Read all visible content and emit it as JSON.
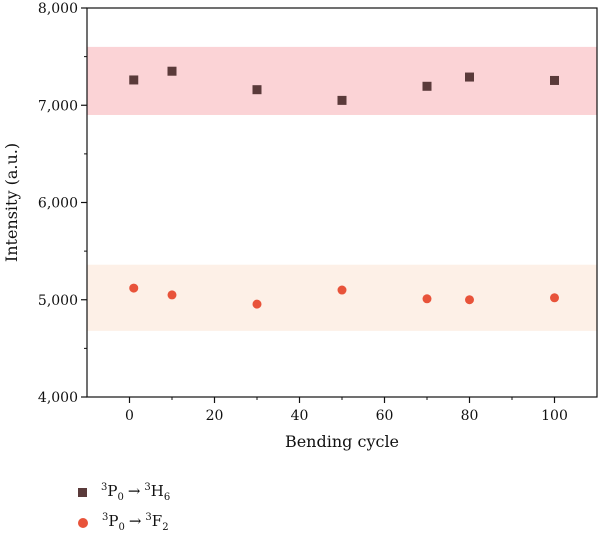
{
  "chart_data": {
    "type": "scatter",
    "xlabel": "Bending cycle",
    "ylabel": "Intensity (a.u.)",
    "xlim": [
      -10,
      110
    ],
    "ylim": [
      4000,
      8000
    ],
    "x_ticks": [
      0,
      20,
      40,
      60,
      80,
      100
    ],
    "x_tick_labels": [
      "0",
      "20",
      "40",
      "60",
      "80",
      "100"
    ],
    "y_ticks": [
      4000,
      5000,
      6000,
      7000,
      8000
    ],
    "y_tick_labels": [
      "4,000",
      "5,000",
      "6,000",
      "7,000",
      "8,000"
    ],
    "grid": false,
    "legend_position": "bottom-left, below plot",
    "bands": [
      {
        "y_range": [
          6900,
          7600
        ],
        "color": "#fbd3d6"
      },
      {
        "y_range": [
          4680,
          5360
        ],
        "color": "#fdf0e7"
      }
    ],
    "series": [
      {
        "marker": "square",
        "color": "#5a3a3a",
        "legend": {
          "p_sup": "3",
          "p_base": "P",
          "p_sub": "0",
          "arrow": "→",
          "t_sup": "3",
          "t_base": "H",
          "t_sub": "6"
        },
        "x": [
          1,
          10,
          30,
          50,
          70,
          80,
          100
        ],
        "y": [
          7260,
          7350,
          7160,
          7050,
          7195,
          7290,
          7255
        ]
      },
      {
        "marker": "circle",
        "color": "#e8533a",
        "legend": {
          "p_sup": "3",
          "p_base": "P",
          "p_sub": "0",
          "arrow": "→",
          "t_sup": "3",
          "t_base": "F",
          "t_sub": "2"
        },
        "x": [
          1,
          10,
          30,
          50,
          70,
          80,
          100
        ],
        "y": [
          5120,
          5050,
          4955,
          5100,
          5010,
          5000,
          5020
        ]
      }
    ]
  }
}
